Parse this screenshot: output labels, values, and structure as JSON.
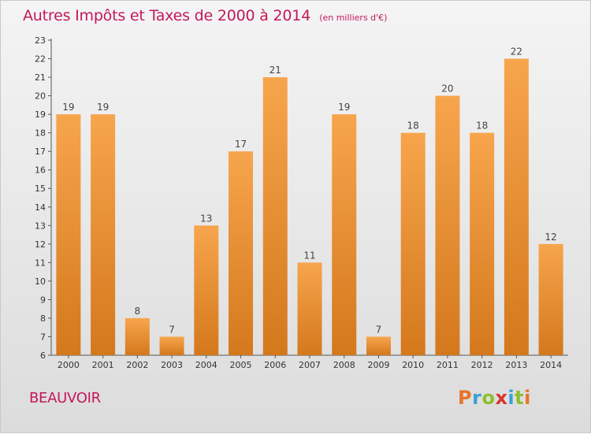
{
  "header": {
    "title": "Autres Impôts et Taxes de 2000 à 2014",
    "unit": "(en milliers d'€)"
  },
  "footer": {
    "commune": "BEAUVOIR",
    "logo_letters": [
      "P",
      "r",
      "o",
      "x",
      "i",
      "t",
      "i"
    ]
  },
  "colors": {
    "title": "#c2185b",
    "bar_top": "#f7a54d",
    "bar_bottom": "#d4781c",
    "logo": [
      "#e8742a",
      "#3aa0d8",
      "#8bbf2d",
      "#d9342b",
      "#3aa0d8",
      "#8bbf2d",
      "#e8742a"
    ]
  },
  "chart_data": {
    "type": "bar",
    "categories": [
      "2000",
      "2001",
      "2002",
      "2003",
      "2004",
      "2005",
      "2006",
      "2007",
      "2008",
      "2009",
      "2010",
      "2011",
      "2012",
      "2013",
      "2014"
    ],
    "values": [
      19,
      19,
      8,
      7,
      13,
      17,
      21,
      11,
      19,
      7,
      18,
      20,
      18,
      22,
      12
    ],
    "title": "Autres Impôts et Taxes de 2000 à 2014",
    "ylim": [
      6,
      23
    ],
    "yticks": [
      6,
      7,
      8,
      9,
      10,
      11,
      12,
      13,
      14,
      15,
      16,
      17,
      18,
      19,
      20,
      21,
      22,
      23
    ],
    "grid": false,
    "data_labels": true
  }
}
